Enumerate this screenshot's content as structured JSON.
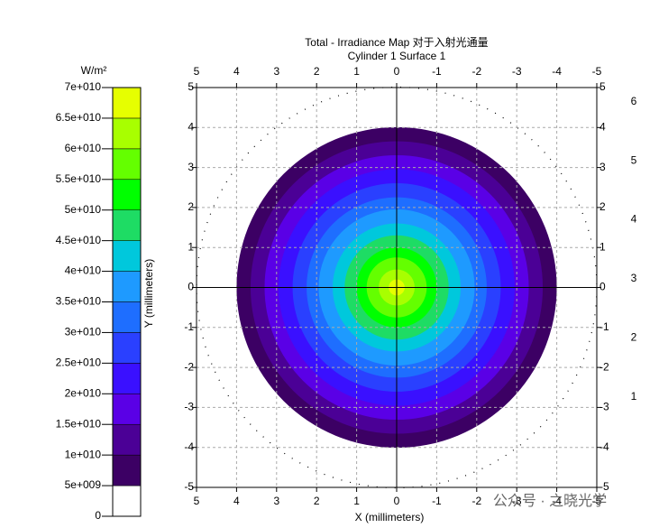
{
  "chart_data": {
    "type": "disc_contour",
    "title": "Total - Irradiance Map 对于入射光通量",
    "subtitle": "Cylinder 1 Surface 1",
    "xlabel": "X (millimeters)",
    "ylabel": "Y (millimeters)",
    "xlim": [
      5,
      -5
    ],
    "xticks": [
      5,
      4,
      3,
      2,
      1,
      0,
      -1,
      -2,
      -3,
      -4,
      -5
    ],
    "ylim": [
      -5,
      5
    ],
    "yticks": [
      -5,
      -4,
      -3,
      -2,
      -1,
      0,
      1,
      2,
      3,
      4,
      5
    ],
    "y2lim": [
      -0.53,
      6.24
    ],
    "y2ticks": [
      1,
      2,
      3,
      4,
      5,
      6
    ],
    "grid": true,
    "colorbar": {
      "label": "W/m²",
      "lim": [
        0,
        70000000000
      ],
      "ticks": [
        0,
        {
          "value": 5000000000,
          "label": "5e+009"
        },
        {
          "value": 10000000000,
          "label": "1e+010"
        },
        {
          "value": 15000000000,
          "label": "1.5e+010"
        },
        {
          "value": 20000000000,
          "label": "2e+010"
        },
        {
          "value": 25000000000,
          "label": "2.5e+010"
        },
        {
          "value": 30000000000,
          "label": "3e+010"
        },
        {
          "value": 35000000000,
          "label": "3.5e+010"
        },
        {
          "value": 40000000000,
          "label": "4e+010"
        },
        {
          "value": 45000000000,
          "label": "4.5e+010"
        },
        {
          "value": 50000000000,
          "label": "5e+010"
        },
        {
          "value": 55000000000,
          "label": "5.5e+010"
        },
        {
          "value": 60000000000,
          "label": "6e+010"
        },
        {
          "value": 65000000000,
          "label": "6.5e+010"
        },
        {
          "value": 70000000000,
          "label": "7e+010"
        }
      ],
      "colors": [
        "#ffffff",
        "#3c0064",
        "#4b0096",
        "#5a00e6",
        "#3a10ff",
        "#2a40ff",
        "#1e6eff",
        "#1e9aff",
        "#00c8dc",
        "#1edc64",
        "#00ff00",
        "#64ff00",
        "#a8ff00",
        "#e6ff00"
      ]
    },
    "disc_radii": [
      null,
      4.0,
      3.65,
      3.3,
      2.95,
      2.6,
      2.25,
      1.95,
      1.6,
      1.3,
      1.0,
      0.75,
      0.45,
      0.2
    ],
    "watermark": "公众号 · 之晓光学"
  }
}
